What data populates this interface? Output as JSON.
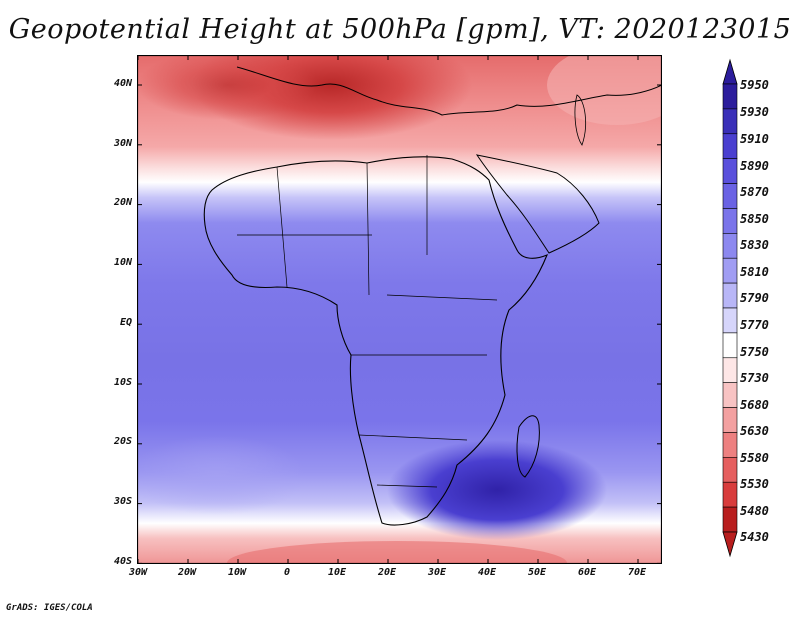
{
  "title": "Geopotential Height at 500hPa [gpm], VT: 2020123015",
  "credit": "GrADS: IGES/COLA",
  "map": {
    "lat_labels": [
      "40N",
      "30N",
      "20N",
      "10N",
      "EQ",
      "10S",
      "20S",
      "30S",
      "40S"
    ],
    "lon_labels": [
      "30W",
      "20W",
      "10W",
      "0",
      "10E",
      "20E",
      "30E",
      "40E",
      "50E",
      "60E",
      "70E"
    ]
  },
  "colorbar": {
    "levels": [
      "5950",
      "5930",
      "5910",
      "5890",
      "5870",
      "5850",
      "5830",
      "5810",
      "5790",
      "5770",
      "5750",
      "5730",
      "5680",
      "5630",
      "5580",
      "5530",
      "5480",
      "5430"
    ],
    "colors": [
      "#2c1d9c",
      "#3a2fb8",
      "#4a3fd0",
      "#5a50dc",
      "#6a62e4",
      "#7a74ea",
      "#8c88ef",
      "#a09df3",
      "#b8b6f7",
      "#d6d5fb",
      "#ffffff",
      "#fde6e6",
      "#f8c3c3",
      "#f3a0a0",
      "#ed8080",
      "#e55f5f",
      "#d83c3c",
      "#b81e1e"
    ]
  },
  "colors": {
    "deep_blue": "#3a2fb8",
    "mid_blue": "#7a74ea",
    "light_blue": "#b8b6f7",
    "white": "#ffffff",
    "light_red": "#f3a0a0",
    "deep_red": "#b81e1e",
    "border": "#000000"
  }
}
